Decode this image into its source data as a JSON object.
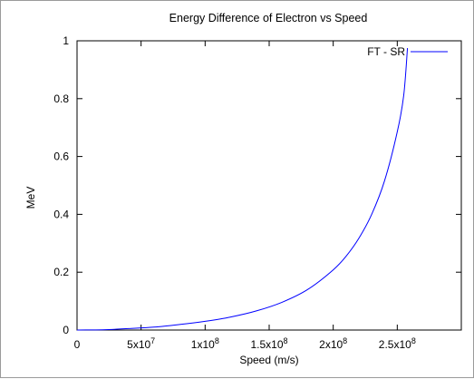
{
  "chart_data": {
    "type": "line",
    "title": "Energy Difference of Electron vs Speed",
    "xlabel": "Speed (m/s)",
    "ylabel": "MeV",
    "xlim": [
      0,
      300000000
    ],
    "ylim": [
      0,
      1
    ],
    "grid": false,
    "legend_position": "top-right",
    "x_ticks": [
      {
        "value": 0,
        "base": "0",
        "exp": ""
      },
      {
        "value": 50000000,
        "base": "5x10",
        "exp": "7"
      },
      {
        "value": 100000000,
        "base": "1x10",
        "exp": "8"
      },
      {
        "value": 150000000,
        "base": "1.5x10",
        "exp": "8"
      },
      {
        "value": 200000000,
        "base": "2x10",
        "exp": "8"
      },
      {
        "value": 250000000,
        "base": "2.5x10",
        "exp": "8"
      }
    ],
    "y_ticks": [
      {
        "value": 0,
        "label": "0"
      },
      {
        "value": 0.2,
        "label": "0.2"
      },
      {
        "value": 0.4,
        "label": "0.4"
      },
      {
        "value": 0.6,
        "label": "0.6"
      },
      {
        "value": 0.8,
        "label": "0.8"
      },
      {
        "value": 1,
        "label": "1"
      }
    ],
    "series": [
      {
        "name": "FT - SR",
        "color": "#0000ff",
        "x": [
          0,
          20000000,
          40000000,
          60000000,
          80000000,
          100000000,
          120000000,
          140000000,
          160000000,
          180000000,
          200000000,
          210000000,
          220000000,
          230000000,
          240000000,
          250000000,
          255000000,
          258000000
        ],
        "y": [
          0,
          0.001,
          0.005,
          0.01,
          0.019,
          0.03,
          0.045,
          0.066,
          0.096,
          0.14,
          0.208,
          0.255,
          0.317,
          0.4,
          0.515,
          0.685,
          0.81,
          0.975
        ]
      }
    ]
  }
}
